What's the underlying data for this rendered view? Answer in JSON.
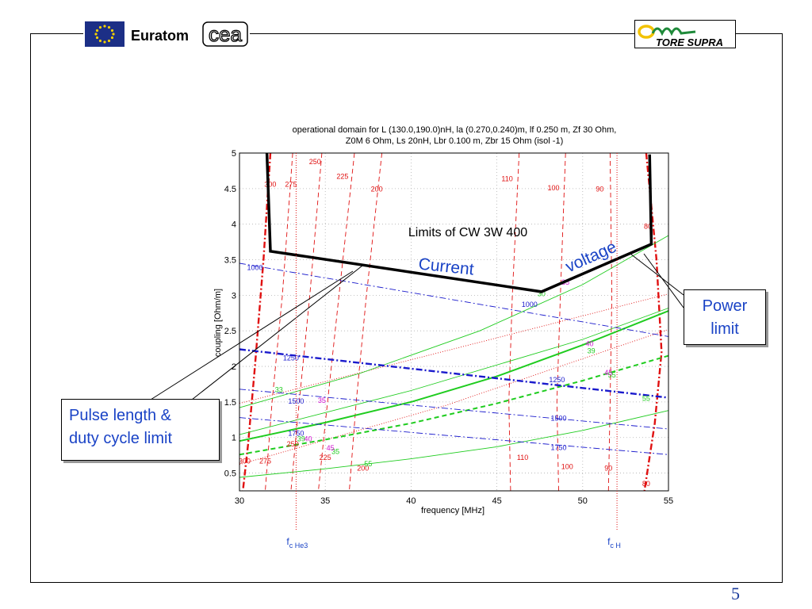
{
  "header": {
    "euratom_label": "Euratom",
    "cea_label": "cea",
    "tore_supra_label": "TORE SUPRA"
  },
  "page_number": "5",
  "chart_data": {
    "type": "line",
    "title_line1": "operational domain for L (130.0,190.0)nH, la (0.270,0.240)m, lf 0.250 m, Zf   30 Ohm,",
    "title_line2": "Z0M    6 Ohm, Ls   20nH, Lbr 0.100 m, Zbr   15 Ohm (isol -1)",
    "xlabel": "frequency [MHz]",
    "ylabel": "coupling [Ohm/m]",
    "xlim": [
      30,
      55
    ],
    "ylim": [
      0.25,
      5
    ],
    "xticks": [
      30,
      35,
      40,
      45,
      50,
      55
    ],
    "yticks": [
      0.5,
      1,
      1.5,
      2,
      2.5,
      3,
      3.5,
      4,
      4.5,
      5
    ],
    "grid": true,
    "annotation_main": "Limits of CW 3W 400",
    "annotation_current": "Current",
    "annotation_voltage": "voltage",
    "cyclotron_lines": [
      {
        "label": "f",
        "sub": "c He3",
        "x": 33.3
      },
      {
        "label": "f",
        "sub": "c H",
        "x": 52.0
      }
    ],
    "limit_polygon": {
      "color": "#000000",
      "points": [
        [
          31.6,
          5.0
        ],
        [
          31.8,
          3.62
        ],
        [
          47.6,
          3.05
        ],
        [
          54.0,
          3.72
        ],
        [
          53.9,
          4.98
        ]
      ]
    },
    "blue_curves": [
      {
        "name": "1000",
        "style": "dashdot",
        "points": [
          [
            30,
            3.45
          ],
          [
            55,
            2.42
          ]
        ],
        "labels": [
          [
            30.9,
            3.39,
            "1000"
          ],
          [
            46.9,
            2.87,
            "1000"
          ]
        ]
      },
      {
        "name": "1250",
        "style": "dashdot-thick",
        "points": [
          [
            30,
            2.24
          ],
          [
            55,
            1.56
          ]
        ],
        "labels": [
          [
            33.0,
            2.12,
            "1250"
          ],
          [
            48.5,
            1.81,
            "1250"
          ]
        ]
      },
      {
        "name": "1500",
        "style": "dashdot",
        "points": [
          [
            30,
            1.68
          ],
          [
            55,
            1.12
          ]
        ],
        "labels": [
          [
            33.3,
            1.51,
            "1500"
          ],
          [
            48.6,
            1.27,
            "1500"
          ]
        ]
      },
      {
        "name": "1750",
        "style": "dashdot",
        "points": [
          [
            30,
            1.28
          ],
          [
            55,
            0.76
          ]
        ],
        "labels": [
          [
            33.3,
            1.06,
            "1750"
          ],
          [
            48.6,
            0.86,
            "1750"
          ]
        ]
      }
    ],
    "green_curves": [
      {
        "name": "33",
        "style": "solid-thin",
        "points": [
          [
            30,
            1.42
          ],
          [
            37,
            1.9
          ],
          [
            44,
            2.5
          ],
          [
            50,
            3.15
          ],
          [
            55,
            3.84
          ]
        ]
      },
      {
        "name": "39",
        "style": "solid-thick",
        "points": [
          [
            30,
            0.95
          ],
          [
            35,
            1.21
          ],
          [
            40,
            1.5
          ],
          [
            45,
            1.86
          ],
          [
            50,
            2.3
          ],
          [
            55,
            2.78
          ]
        ]
      },
      {
        "name": "45",
        "style": "dashed-thick",
        "points": [
          [
            30,
            0.76
          ],
          [
            35,
            0.97
          ],
          [
            40,
            1.2
          ],
          [
            45,
            1.48
          ],
          [
            50,
            1.8
          ],
          [
            55,
            2.15
          ]
        ]
      },
      {
        "name": "55",
        "style": "solid-thin",
        "points": [
          [
            30,
            0.44
          ],
          [
            35,
            0.56
          ],
          [
            40,
            0.7
          ],
          [
            45,
            0.87
          ],
          [
            50,
            1.1
          ],
          [
            55,
            1.38
          ]
        ]
      },
      {
        "name": "",
        "style": "solid-thin",
        "points": [
          [
            30,
            1.04
          ],
          [
            40,
            1.66
          ],
          [
            50,
            2.38
          ],
          [
            55,
            2.82
          ]
        ]
      }
    ],
    "green_labels": [
      [
        32.3,
        1.67,
        "33"
      ],
      [
        33.6,
        0.98,
        "39"
      ],
      [
        35.6,
        0.8,
        "35"
      ],
      [
        37.5,
        0.63,
        "55"
      ],
      [
        50.5,
        2.22,
        "39"
      ],
      [
        51.7,
        1.88,
        "55"
      ],
      [
        53.7,
        1.55,
        "55"
      ],
      [
        47.6,
        3.02,
        "30"
      ]
    ],
    "magenta_labels": [
      [
        34.8,
        1.52,
        "35"
      ],
      [
        34.0,
        0.98,
        "40"
      ],
      [
        35.3,
        0.85,
        "45"
      ],
      [
        49.0,
        3.18,
        "35"
      ],
      [
        50.4,
        2.32,
        "40"
      ],
      [
        51.5,
        1.91,
        "45"
      ]
    ],
    "red_curves": [
      {
        "name": "300",
        "style": "dashdot-thick",
        "points": [
          [
            31.8,
            5.0
          ],
          [
            31.4,
            3.5
          ],
          [
            30.9,
            2.0
          ],
          [
            30.5,
            0.9
          ],
          [
            30.2,
            0.25
          ]
        ]
      },
      {
        "name": "80",
        "style": "dashdot-thick",
        "points": [
          [
            53.7,
            5.0
          ],
          [
            54.3,
            3.5
          ],
          [
            54.6,
            2.2
          ],
          [
            54.2,
            1.2
          ],
          [
            53.6,
            0.25
          ]
        ]
      },
      {
        "name": "275",
        "style": "dashed",
        "points": [
          [
            33.1,
            5.0
          ],
          [
            32.5,
            3.0
          ],
          [
            31.9,
            1.5
          ],
          [
            31.5,
            0.25
          ]
        ]
      },
      {
        "name": "250",
        "style": "dashed",
        "points": [
          [
            34.8,
            5.0
          ],
          [
            34.1,
            3.0
          ],
          [
            33.4,
            1.3
          ],
          [
            33.0,
            0.25
          ]
        ]
      },
      {
        "name": "225",
        "style": "dashed",
        "points": [
          [
            36.7,
            5.0
          ],
          [
            35.8,
            3.0
          ],
          [
            35.0,
            1.2
          ],
          [
            34.6,
            0.25
          ]
        ]
      },
      {
        "name": "200",
        "style": "dashed",
        "points": [
          [
            38.3,
            5.0
          ],
          [
            37.4,
            3.0
          ],
          [
            36.8,
            1.5
          ],
          [
            36.4,
            0.25
          ]
        ]
      },
      {
        "name": "110",
        "style": "dashed",
        "points": [
          [
            46.3,
            5.0
          ],
          [
            45.9,
            3.0
          ],
          [
            45.7,
            1.5
          ],
          [
            45.8,
            0.25
          ]
        ]
      },
      {
        "name": "100",
        "style": "dashed",
        "points": [
          [
            49.0,
            5.0
          ],
          [
            48.7,
            3.0
          ],
          [
            48.5,
            1.5
          ],
          [
            48.6,
            0.25
          ]
        ]
      },
      {
        "name": "90",
        "style": "dashed",
        "points": [
          [
            51.6,
            5.0
          ],
          [
            51.7,
            3.0
          ],
          [
            51.6,
            1.5
          ],
          [
            51.5,
            0.25
          ]
        ]
      }
    ],
    "red_labels": [
      [
        31.8,
        4.56,
        "300"
      ],
      [
        33.0,
        4.56,
        "275"
      ],
      [
        34.4,
        4.88,
        "250"
      ],
      [
        36.0,
        4.67,
        "225"
      ],
      [
        38.0,
        4.49,
        "200"
      ],
      [
        45.6,
        4.64,
        "110"
      ],
      [
        48.3,
        4.51,
        "100"
      ],
      [
        51.0,
        4.49,
        "90"
      ],
      [
        53.8,
        3.97,
        "80"
      ],
      [
        30.3,
        0.67,
        "300"
      ],
      [
        31.5,
        0.67,
        "275"
      ],
      [
        33.1,
        0.91,
        "250"
      ],
      [
        35.0,
        0.72,
        "225"
      ],
      [
        37.2,
        0.57,
        "200"
      ],
      [
        46.5,
        0.72,
        "110"
      ],
      [
        49.1,
        0.59,
        "100"
      ],
      [
        51.5,
        0.57,
        "90"
      ],
      [
        53.7,
        0.35,
        "80"
      ]
    ],
    "red_dotted": [
      [
        [
          30,
          0.62
        ],
        [
          42,
          1.45
        ],
        [
          55,
          2.52
        ]
      ],
      [
        [
          30,
          1.48
        ],
        [
          44,
          2.34
        ],
        [
          55,
          3.02
        ]
      ]
    ]
  },
  "callouts": {
    "pulse_line1": "Pulse length &",
    "pulse_line2": "duty cycle limit",
    "power_line1": "Power",
    "power_line2": "limit"
  }
}
